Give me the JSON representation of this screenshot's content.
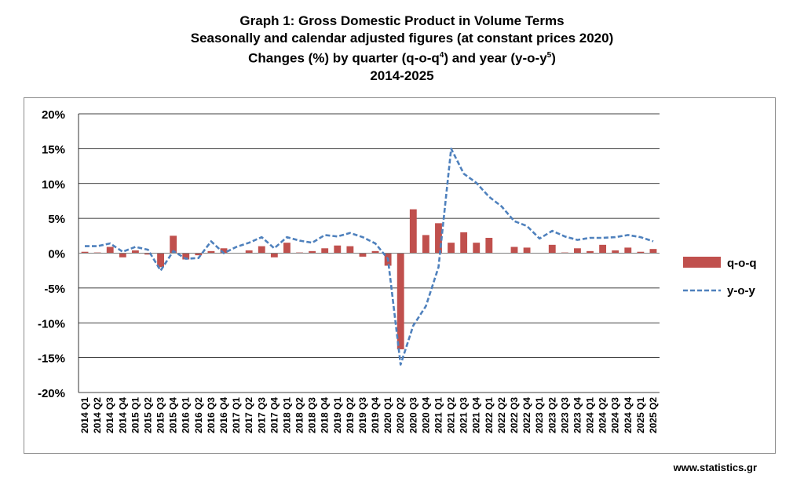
{
  "title": {
    "line1": "Graph 1: Gross Domestic Product in Volume Terms",
    "line2": "Seasonally and calendar adjusted figures (at constant prices 2020)",
    "line3_a": "Changes (%) by quarter (q-o-q",
    "line3_sup1": "4",
    "line3_b": ") and year (y-o-y",
    "line3_sup2": "5",
    "line3_c": ")",
    "line4": "2014-2025"
  },
  "footer": {
    "site": "www.statistics.gr"
  },
  "colors": {
    "bar": "#C0504D",
    "line": "#4F81BD",
    "grid": "#000000"
  },
  "chart_data": {
    "type": "bar",
    "ylim": [
      -20,
      20
    ],
    "yticks": [
      20,
      15,
      10,
      5,
      0,
      -5,
      -10,
      -15,
      -20
    ],
    "ytick_labels": [
      "20%",
      "15%",
      "10%",
      "5%",
      "0%",
      "-5%",
      "-10%",
      "-15%",
      "-20%"
    ],
    "grid": true,
    "legend_position": "right",
    "categories": [
      "2014 Q1",
      "2014 Q2",
      "2014 Q3",
      "2014 Q4",
      "2015 Q1",
      "2015 Q2",
      "2015 Q3",
      "2015 Q4",
      "2016 Q1",
      "2016 Q2",
      "2016 Q3",
      "2016 Q4",
      "2017 Q1",
      "2017 Q2",
      "2017 Q3",
      "2017 Q4",
      "2018 Q1",
      "2018 Q2",
      "2018 Q3",
      "2018 Q4",
      "2019 Q1",
      "2019 Q2",
      "2019 Q3",
      "2019 Q4",
      "2020 Q1",
      "2020 Q2",
      "2020 Q3",
      "2020 Q4",
      "2021 Q1",
      "2021 Q2",
      "2021 Q3",
      "2021 Q4",
      "2022 Q1",
      "2022 Q2",
      "2022 Q3",
      "2022 Q4",
      "2023 Q1",
      "2023 Q2",
      "2023 Q3",
      "2023 Q4",
      "2024 Q1",
      "2024 Q2",
      "2024 Q3",
      "2024 Q4",
      "2025 Q1",
      "2025 Q2"
    ],
    "series": [
      {
        "name": "q-o-q",
        "kind": "bar",
        "values": [
          0.2,
          0.1,
          0.9,
          -0.6,
          0.4,
          -0.2,
          -2.0,
          2.5,
          -0.9,
          -0.3,
          0.3,
          0.7,
          0.0,
          0.4,
          1.0,
          -0.6,
          1.5,
          0.1,
          0.3,
          0.7,
          1.1,
          1.0,
          -0.5,
          0.3,
          -1.8,
          -13.8,
          6.3,
          2.6,
          4.3,
          1.5,
          3.0,
          1.5,
          2.2,
          0.0,
          0.9,
          0.8,
          0.0,
          1.2,
          0.1,
          0.7,
          0.3,
          1.2,
          0.4,
          0.8,
          0.2,
          0.6
        ]
      },
      {
        "name": "y-o-y",
        "kind": "line",
        "values": [
          1.0,
          1.0,
          1.4,
          0.2,
          0.9,
          0.5,
          -2.5,
          0.3,
          -0.8,
          -0.7,
          1.7,
          0.0,
          0.9,
          1.5,
          2.3,
          0.7,
          2.3,
          1.8,
          1.5,
          2.6,
          2.4,
          2.9,
          2.3,
          1.4,
          -0.8,
          -16.0,
          -10.4,
          -7.6,
          -2.0,
          15.0,
          11.4,
          10.1,
          8.1,
          6.7,
          4.6,
          3.9,
          2.1,
          3.2,
          2.4,
          1.9,
          2.2,
          2.2,
          2.3,
          2.6,
          2.3,
          1.7
        ]
      }
    ]
  }
}
